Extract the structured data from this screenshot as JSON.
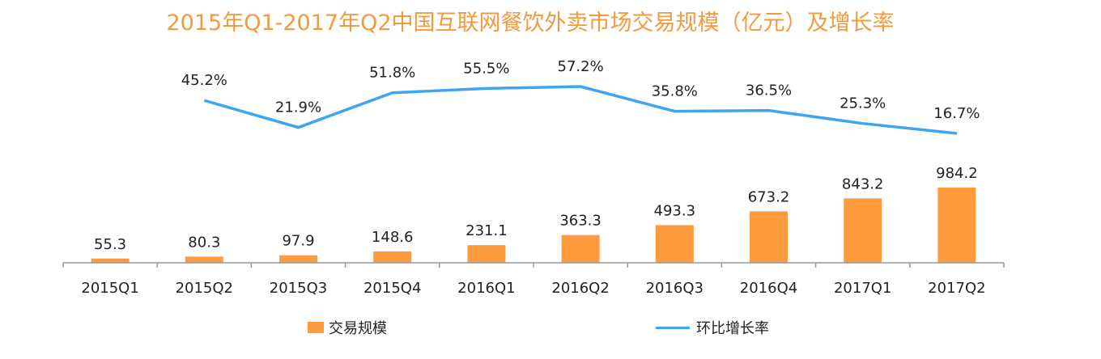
{
  "title": "2015年Q1-2017年Q2中国互联网餐饮外卖市场交易规模（亿元）及增长率",
  "colors": {
    "bar": "#FF9B3F",
    "line": "#3EA6EF",
    "title": "#F39A3F",
    "axis": "#999999"
  },
  "legend": {
    "bar_label": "交易规模",
    "line_label": "环比增长率"
  },
  "chart_data": {
    "type": "bar",
    "title": "2015年Q1-2017年Q2中国互联网餐饮外卖市场交易规模（亿元）及增长率",
    "categories": [
      "2015Q1",
      "2015Q2",
      "2015Q3",
      "2015Q4",
      "2016Q1",
      "2016Q2",
      "2016Q3",
      "2016Q4",
      "2017Q1",
      "2017Q2"
    ],
    "series": [
      {
        "name": "交易规模",
        "type": "bar",
        "values": [
          55.3,
          80.3,
          97.9,
          148.6,
          231.1,
          363.3,
          493.3,
          673.2,
          843.2,
          984.2
        ],
        "labels": [
          "55.3",
          "80.3",
          "97.9",
          "148.6",
          "231.1",
          "363.3",
          "493.3",
          "673.2",
          "843.2",
          "984.2"
        ]
      },
      {
        "name": "环比增长率",
        "type": "line",
        "values": [
          null,
          45.2,
          21.9,
          51.8,
          55.5,
          57.2,
          35.8,
          36.5,
          25.3,
          16.7
        ],
        "labels": [
          "",
          "45.2%",
          "21.9%",
          "51.8%",
          "55.5%",
          "57.2%",
          "35.8%",
          "36.5%",
          "25.3%",
          "16.7%"
        ]
      }
    ],
    "legend_position": "bottom",
    "grid": false
  }
}
